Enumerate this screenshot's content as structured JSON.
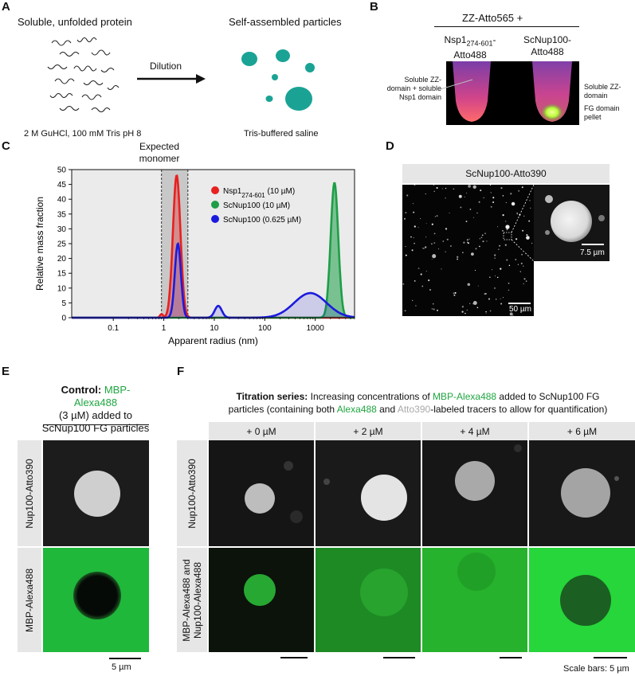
{
  "panelA": {
    "letter": "A",
    "soluble_title": "Soluble, unfolded protein",
    "assembled_title": "Self-assembled particles",
    "arrow_label": "Dilution",
    "left_condition": "2 M GuHCl, 100 mM Tris pH 8",
    "right_condition": "Tris-buffered saline"
  },
  "panelB": {
    "letter": "B",
    "header": "ZZ-Atto565 +",
    "tube1_line1": "Nsp1",
    "tube1_sub": "274-601",
    "tube1_line1_suffix": "-",
    "tube1_line2": "Atto488",
    "tube2_line1": "ScNup100-",
    "tube2_line2": "Atto488",
    "left_annotation": "Soluble ZZ-domain + soluble Nsp1 domain",
    "right_annotation_top": "Soluble ZZ-domain",
    "right_annotation_bottom": "FG domain pellet"
  },
  "panelC": {
    "letter": "C",
    "expected_line1": "Expected",
    "expected_line2": "monomer"
  },
  "chart_data": {
    "type": "area",
    "xlabel": "Apparent radius (nm)",
    "ylabel": "Relative mass fraction",
    "xscale": "log",
    "xlim": [
      0.015,
      6000
    ],
    "ylim": [
      0,
      50
    ],
    "yticks": [
      0,
      5,
      10,
      15,
      20,
      25,
      30,
      35,
      40,
      45,
      50
    ],
    "xticks": [
      {
        "value": 0.1,
        "label": "0.1"
      },
      {
        "value": 1,
        "label": "1"
      },
      {
        "value": 10,
        "label": "10"
      },
      {
        "value": 100,
        "label": "100"
      },
      {
        "value": 1000,
        "label": "1000"
      }
    ],
    "expected_band": [
      0.9,
      3.0
    ],
    "legend_position": "top-right",
    "series": [
      {
        "name": "Nsp1",
        "name_sub": "274-601",
        "name_suffix": " (10 µM)",
        "color": "#e8201f",
        "peaks": [
          {
            "center": 1.8,
            "height": 48,
            "width": 0.075
          },
          {
            "center": 0.9,
            "height": 1.2,
            "width": 0.03
          }
        ]
      },
      {
        "name": "ScNup100 (10 µM)",
        "color": "#1e9e48",
        "peaks": [
          {
            "center": 2400,
            "height": 45.5,
            "width": 0.075
          }
        ]
      },
      {
        "name": "ScNup100 (0.625 µM)",
        "color": "#1b1bde",
        "peaks": [
          {
            "center": 1.9,
            "height": 25,
            "width": 0.06
          },
          {
            "center": 12,
            "height": 4,
            "width": 0.07
          },
          {
            "center": 800,
            "height": 8.3,
            "width": 0.32
          }
        ]
      }
    ]
  },
  "panelD": {
    "letter": "D",
    "header": "ScNup100-Atto390",
    "scale_main": "50 µm",
    "scale_inset": "7.5 µm"
  },
  "panelE": {
    "letter": "E",
    "title_bold": "Control:",
    "title_green": "MBP-Alexa488",
    "title_line2": "(3 µM) added to",
    "title_line3": "ScNup100 FG particles",
    "row1_label": "Nup100-Atto390",
    "row2_label": "MBP-Alexa488",
    "scale_label": "5 µm"
  },
  "panelF": {
    "letter": "F",
    "title_bold": "Titration series:",
    "title_part1": " Increasing concentrations of ",
    "title_green1": "MBP-Alexa488",
    "title_part2": " added to ScNup100 FG",
    "title_line2_a": "particles (containing both ",
    "title_green2": "Alexa488",
    "title_line2_b": " and ",
    "title_gray": "Atto390",
    "title_line2_c": "-labeled tracers to allow for quantification)",
    "columns": [
      "+ 0 µM",
      "+ 2 µM",
      "+ 4 µM",
      "+ 6 µM"
    ],
    "row1_label": "Nup100-Atto390",
    "row2_label_line1": "MBP-Alexa488 and",
    "row2_label_line2": "Nup100-Alexa488",
    "scale_label": "Scale bars: 5 µm"
  }
}
